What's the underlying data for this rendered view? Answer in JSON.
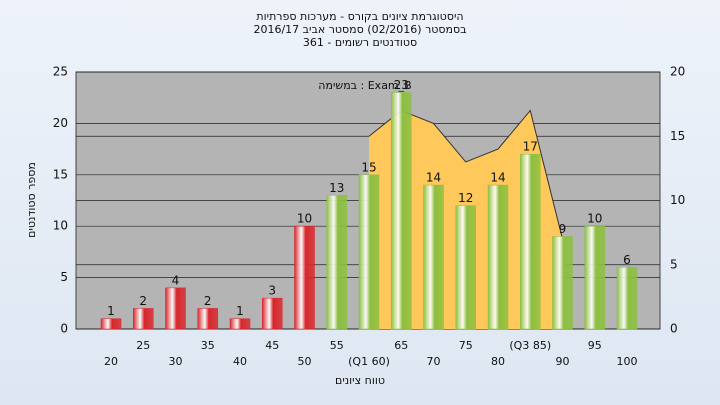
{
  "chart_data": {
    "type": "bar",
    "title": [
      "היסטוגרמת ציונים בקורס - מערכות ספרתיות",
      "בסמסטר (02/2016) סמסטר אביב 2016/17",
      "סטודנטים רשומים - 361"
    ],
    "annotation": "במשימה : Exam_B",
    "y_label": "מספר סטודנטים",
    "x_label": "טווח ציונים",
    "categories": [
      "20",
      "25",
      "30",
      "35",
      "40",
      "45",
      "50",
      "55",
      "(Q1 60)",
      "65",
      "70",
      "75",
      "80",
      "(Q3 85)",
      "90",
      "95",
      "100"
    ],
    "values": [
      1,
      2,
      4,
      2,
      1,
      3,
      10,
      13,
      15,
      23,
      14,
      12,
      14,
      17,
      9,
      10,
      6
    ],
    "colors": [
      "#d8262b",
      "#d8262b",
      "#d8262b",
      "#d8262b",
      "#d8262b",
      "#d8262b",
      "#d8262b",
      "#8cbf3f",
      "#8cbf3f",
      "#8cbf3f",
      "#8cbf3f",
      "#8cbf3f",
      "#8cbf3f",
      "#8cbf3f",
      "#8cbf3f",
      "#8cbf3f",
      "#8cbf3f"
    ],
    "curve": {
      "axis": "y2",
      "color": "#ffc85a",
      "values": [
        null,
        null,
        null,
        null,
        null,
        null,
        null,
        null,
        15,
        17,
        16,
        13,
        14,
        17,
        7,
        null,
        null
      ]
    },
    "ylim": [
      0,
      25
    ],
    "yticks": [
      0,
      5,
      10,
      15,
      20,
      25
    ],
    "y2lim": [
      0,
      20
    ],
    "y2ticks": [
      0,
      5,
      10,
      15,
      20
    ],
    "grid": true
  }
}
